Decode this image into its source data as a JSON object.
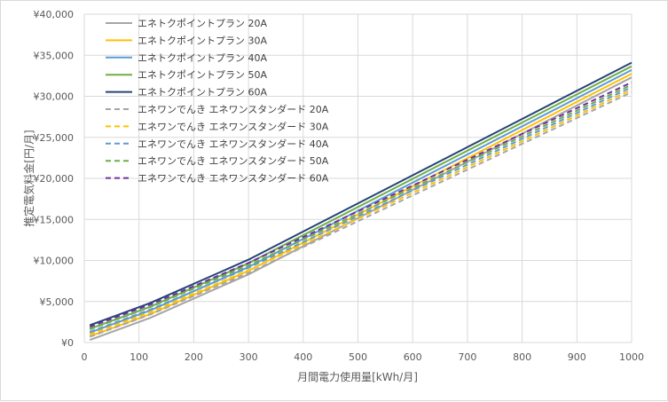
{
  "chart_data": {
    "type": "line",
    "xlabel": "月間電力使用量[kWh/月]",
    "ylabel": "推定電気料金[円/月]",
    "xlim": [
      0,
      1000
    ],
    "ylim": [
      0,
      40000
    ],
    "x_ticks": [
      "0",
      "100",
      "200",
      "300",
      "400",
      "500",
      "600",
      "700",
      "800",
      "900",
      "1000"
    ],
    "y_ticks": [
      "¥0",
      "¥5,000",
      "¥10,000",
      "¥15,000",
      "¥20,000",
      "¥25,000",
      "¥30,000",
      "¥35,000",
      "¥40,000"
    ],
    "grid": true,
    "legend_position": "top-left",
    "x": [
      10,
      120,
      300,
      1000
    ],
    "series": [
      {
        "name": "エネトクポイントプラン 20A",
        "color": "#a5a5a5",
        "dash": false,
        "values": [
          310,
          3000,
          8300,
          32300
        ]
      },
      {
        "name": "エネトクポイントプラン 30A",
        "color": "#ffc000",
        "dash": false,
        "values": [
          760,
          3450,
          8750,
          32750
        ]
      },
      {
        "name": "エネトクポイントプラン 40A",
        "color": "#5b9bd5",
        "dash": false,
        "values": [
          1210,
          3900,
          9200,
          33200
        ]
      },
      {
        "name": "エネトクポイントプラン 50A",
        "color": "#70ad47",
        "dash": false,
        "values": [
          1660,
          4350,
          9650,
          33650
        ]
      },
      {
        "name": "エネトクポイントプラン 60A",
        "color": "#264478",
        "dash": false,
        "values": [
          2110,
          4800,
          10100,
          34100
        ]
      },
      {
        "name": "エネワンでんき エネワンスタンダード 20A",
        "color": "#a5a5a5",
        "dash": true,
        "values": [
          700,
          3400,
          8500,
          30500
        ]
      },
      {
        "name": "エネワンでんき エネワンスタンダード 30A",
        "color": "#ffc000",
        "dash": true,
        "values": [
          1000,
          3700,
          8800,
          30800
        ]
      },
      {
        "name": "エネワンでんき エネワンスタンダード 40A",
        "color": "#5b9bd5",
        "dash": true,
        "values": [
          1300,
          4000,
          9100,
          31100
        ]
      },
      {
        "name": "エネワンでんき エネワンスタンダード 50A",
        "color": "#70ad47",
        "dash": true,
        "values": [
          1600,
          4300,
          9400,
          31400
        ]
      },
      {
        "name": "エネワンでんき エネワンスタンダード 60A",
        "color": "#7030a0",
        "dash": true,
        "values": [
          1900,
          4600,
          9700,
          31700
        ]
      }
    ]
  }
}
